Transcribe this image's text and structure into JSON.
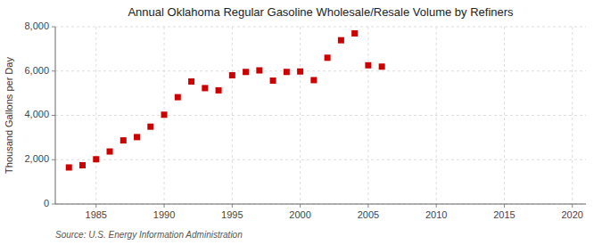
{
  "chart_data": {
    "type": "scatter",
    "title": "Annual Oklahoma Regular Gasoline Wholesale/Resale Volume by Refiners",
    "y_label": "Thousand Gallons per Day",
    "annotations": [
      "Source: U.S. Energy Information Administration"
    ],
    "x": [
      1983,
      1984,
      1985,
      1986,
      1987,
      1988,
      1989,
      1990,
      1991,
      1992,
      1993,
      1994,
      1995,
      1996,
      1997,
      1998,
      1999,
      2000,
      2001,
      2002,
      2003,
      2004,
      2005,
      2006
    ],
    "values": [
      1650,
      1750,
      2020,
      2370,
      2870,
      3020,
      3490,
      4030,
      4820,
      5530,
      5230,
      5130,
      5810,
      5960,
      6030,
      5570,
      5960,
      5980,
      5590,
      6600,
      7390,
      7700,
      6260,
      6200
    ],
    "color": "#cc0000",
    "marker": "square",
    "xlim": [
      1982,
      2021
    ],
    "xticks": [
      1985,
      1990,
      1995,
      2000,
      2005,
      2010,
      2015,
      2020
    ],
    "ylim": [
      0,
      8000
    ],
    "yticks": [
      0,
      {
        "value": 2000,
        "label": "2,000"
      },
      {
        "value": 4000,
        "label": "4,000"
      },
      {
        "value": 6000,
        "label": "6,000"
      },
      {
        "value": 8000,
        "label": "8,000"
      }
    ],
    "grid": true
  }
}
